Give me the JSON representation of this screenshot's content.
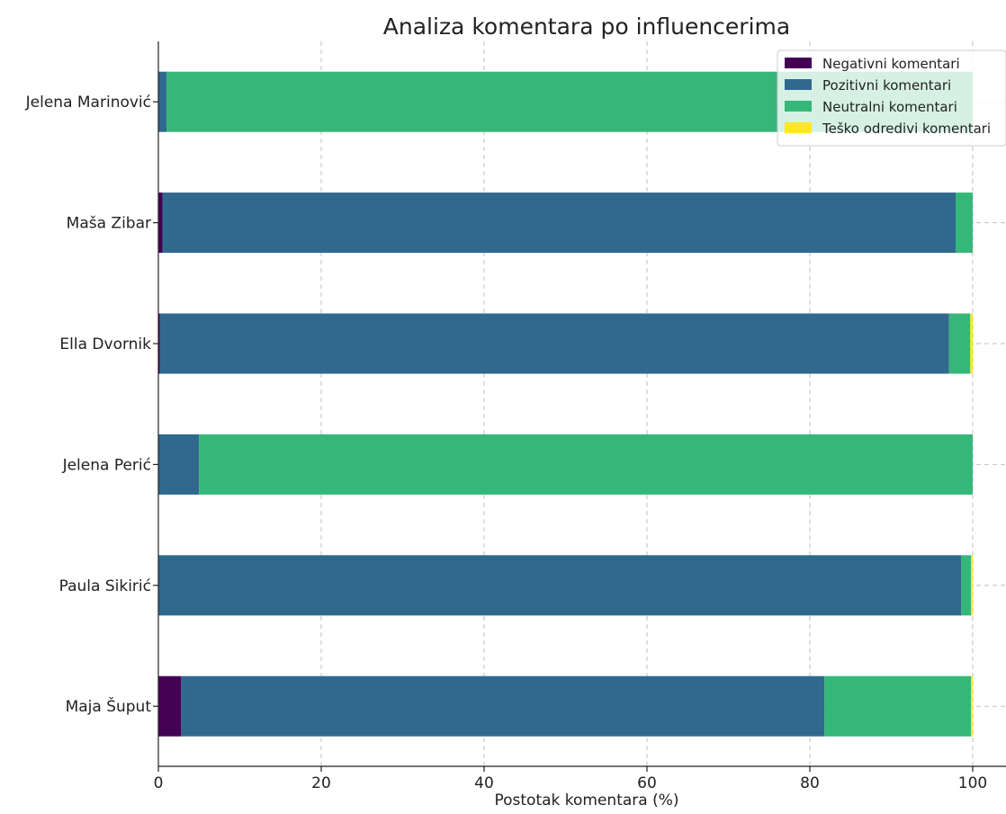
{
  "chart_data": {
    "type": "bar",
    "orientation": "horizontal",
    "stacked": true,
    "title": "Analiza komentara po influencerima",
    "xlabel": "Postotak komentara (%)",
    "ylabel": "",
    "xlim": [
      0,
      100
    ],
    "xticks": [
      0,
      20,
      40,
      60,
      80,
      100
    ],
    "grid": true,
    "legend_position": "top-right",
    "categories": [
      "Jelena Marinović",
      "Maša Zibar",
      "Ella Dvornik",
      "Jelena Perić",
      "Paula Sikirić",
      "Maja Šuput"
    ],
    "series": [
      {
        "name": "Negativni komentari",
        "color": "#440154",
        "values": [
          0.0,
          0.5,
          0.2,
          0.0,
          0.0,
          2.8
        ]
      },
      {
        "name": "Pozitivni komentari",
        "color": "#31688e",
        "values": [
          1.0,
          97.4,
          96.9,
          5.0,
          98.6,
          79.0
        ]
      },
      {
        "name": "Neutralni komentari",
        "color": "#35b779",
        "values": [
          99.0,
          2.1,
          2.6,
          95.0,
          1.2,
          18.0
        ]
      },
      {
        "name": "Teško odredivi komentari",
        "color": "#fde725",
        "values": [
          0.0,
          0.0,
          0.3,
          0.0,
          0.2,
          0.2
        ]
      }
    ]
  }
}
